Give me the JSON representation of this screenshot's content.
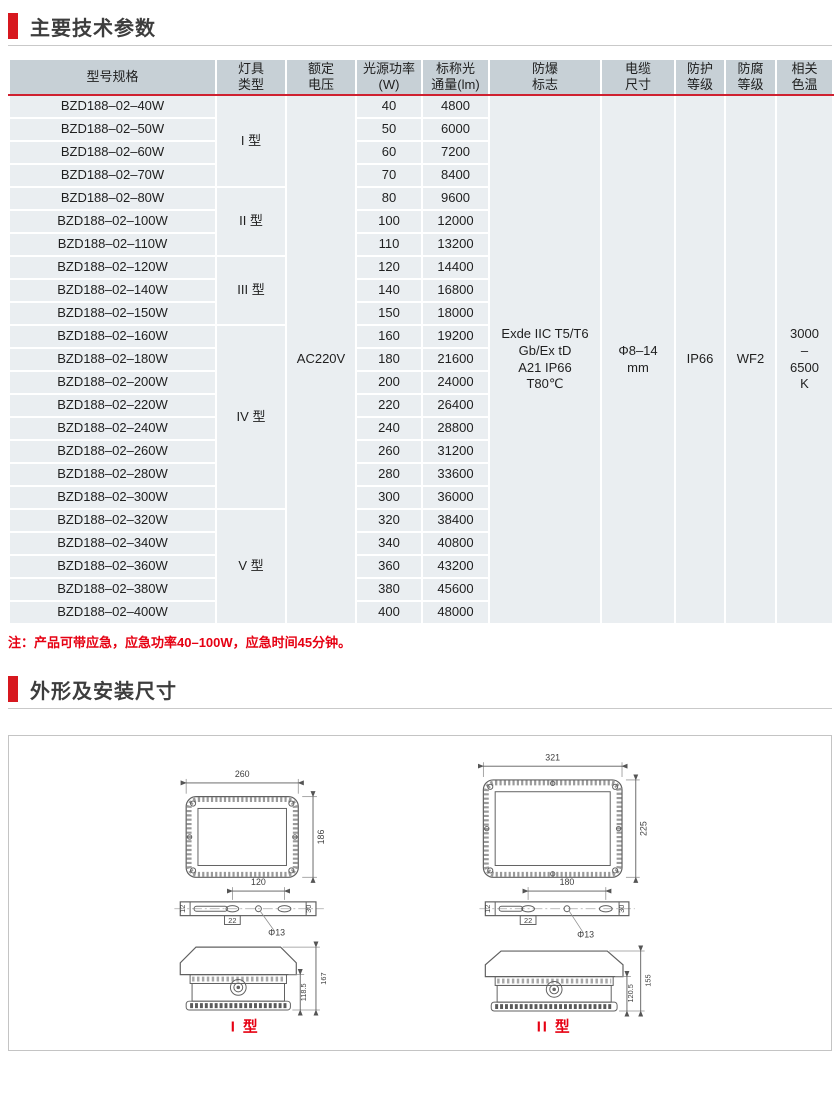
{
  "colors": {
    "accent_red": "#d7181f",
    "note_red": "#e60012",
    "header_red_line": "#cf2030",
    "header_bg": "#c7d0d6",
    "row_bg": "#eaeef1"
  },
  "sections": {
    "tech_params_title": "主要技术参数",
    "dimensions_title": "外形及安装尺寸"
  },
  "table": {
    "headers": [
      "型号规格",
      "灯具\n类型",
      "额定\n电压",
      "光源功率\n(W)",
      "标称光\n通量(lm)",
      "防爆\n标志",
      "电缆\n尺寸",
      "防护\n等级",
      "防腐\n等级",
      "相关\n色温"
    ],
    "voltage": "AC220V",
    "shared": {
      "ex_mark_lines": [
        "Exde IIC T5/T6",
        "Gb/Ex tD",
        "A21 IP66",
        "T80℃"
      ],
      "cable_lines": [
        "Φ8–14",
        "mm"
      ],
      "ip": "IP66",
      "anticorrosion": "WF2",
      "cct_lines": [
        "3000",
        "–",
        "6500",
        "K"
      ]
    },
    "groups": [
      {
        "type": "I 型",
        "rows": [
          {
            "model": "BZD188–02–40W",
            "w": "40",
            "lm": "4800"
          },
          {
            "model": "BZD188–02–50W",
            "w": "50",
            "lm": "6000"
          },
          {
            "model": "BZD188–02–60W",
            "w": "60",
            "lm": "7200"
          },
          {
            "model": "BZD188–02–70W",
            "w": "70",
            "lm": "8400"
          }
        ]
      },
      {
        "type": "II 型",
        "rows": [
          {
            "model": "BZD188–02–80W",
            "w": "80",
            "lm": "9600"
          },
          {
            "model": "BZD188–02–100W",
            "w": "100",
            "lm": "12000"
          },
          {
            "model": "BZD188–02–110W",
            "w": "110",
            "lm": "13200"
          }
        ]
      },
      {
        "type": "III 型",
        "rows": [
          {
            "model": "BZD188–02–120W",
            "w": "120",
            "lm": "14400"
          },
          {
            "model": "BZD188–02–140W",
            "w": "140",
            "lm": "16800"
          },
          {
            "model": "BZD188–02–150W",
            "w": "150",
            "lm": "18000"
          }
        ]
      },
      {
        "type": "IV 型",
        "rows": [
          {
            "model": "BZD188–02–160W",
            "w": "160",
            "lm": "19200"
          },
          {
            "model": "BZD188–02–180W",
            "w": "180",
            "lm": "21600"
          },
          {
            "model": "BZD188–02–200W",
            "w": "200",
            "lm": "24000"
          },
          {
            "model": "BZD188–02–220W",
            "w": "220",
            "lm": "26400"
          },
          {
            "model": "BZD188–02–240W",
            "w": "240",
            "lm": "28800"
          },
          {
            "model": "BZD188–02–260W",
            "w": "260",
            "lm": "31200"
          },
          {
            "model": "BZD188–02–280W",
            "w": "280",
            "lm": "33600"
          },
          {
            "model": "BZD188–02–300W",
            "w": "300",
            "lm": "36000"
          }
        ]
      },
      {
        "type": "V 型",
        "rows": [
          {
            "model": "BZD188–02–320W",
            "w": "320",
            "lm": "38400"
          },
          {
            "model": "BZD188–02–340W",
            "w": "340",
            "lm": "40800"
          },
          {
            "model": "BZD188–02–360W",
            "w": "360",
            "lm": "43200"
          },
          {
            "model": "BZD188–02–380W",
            "w": "380",
            "lm": "45600"
          },
          {
            "model": "BZD188–02–400W",
            "w": "400",
            "lm": "48000"
          }
        ]
      }
    ],
    "note": "注：产品可带应急，应急功率40–100W，应急时间45分钟。"
  },
  "drawings": {
    "left": {
      "label": "I 型",
      "top_width": "260",
      "top_height": "186",
      "bracket_span": "120",
      "bracket_left": "12",
      "bracket_right": "30",
      "bracket_tab": "22",
      "hole": "Φ13",
      "side_inner": "118.5",
      "side_outer": "167"
    },
    "right": {
      "label": "II 型",
      "top_width": "321",
      "top_height": "225",
      "bracket_span": "180",
      "bracket_left": "12",
      "bracket_right": "30",
      "bracket_tab": "22",
      "hole": "Φ13",
      "side_inner": "120.5",
      "side_outer": "155"
    }
  }
}
